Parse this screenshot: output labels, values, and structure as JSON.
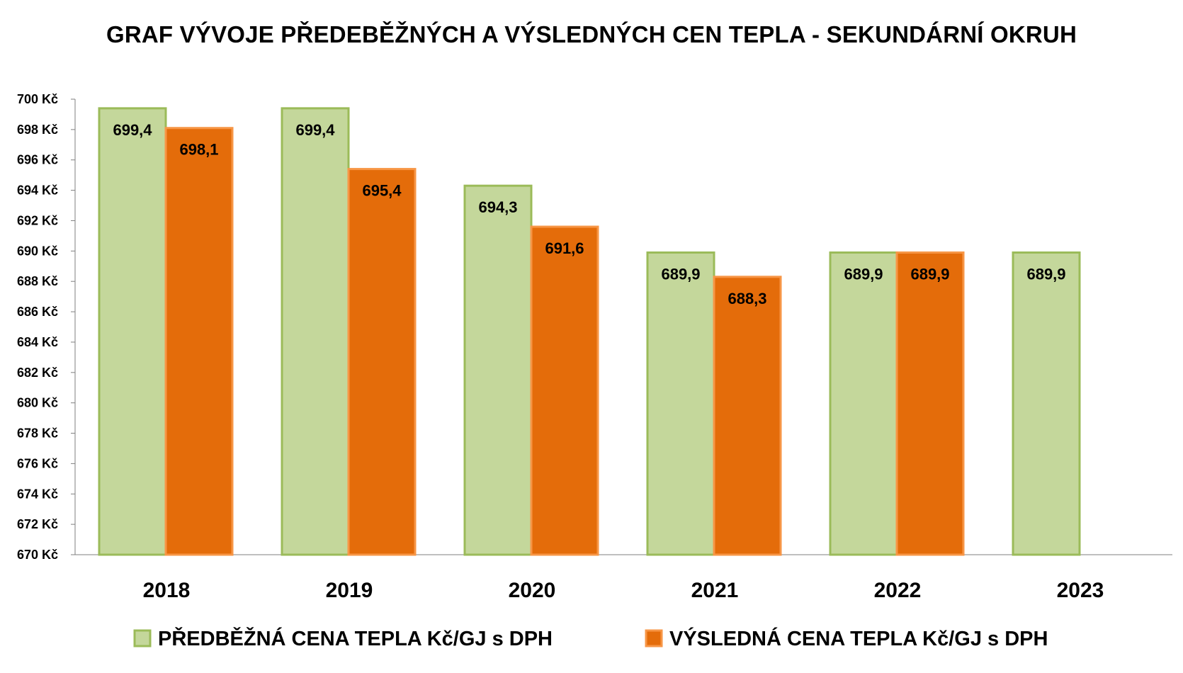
{
  "chart_data": {
    "type": "bar",
    "title": "GRAF VÝVOJE PŘEDEBĚŽNÝCH A VÝSLEDNÝCH CEN TEPLA - SEKUNDÁRNÍ OKRUH",
    "categories": [
      "2018",
      "2019",
      "2020",
      "2021",
      "2022",
      "2023"
    ],
    "series": [
      {
        "name": "PŘEDBĚŽNÁ CENA TEPLA Kč/GJ s DPH",
        "values": [
          699.4,
          699.4,
          694.3,
          689.9,
          689.9,
          689.9
        ],
        "labels": [
          "699,4",
          "699,4",
          "694,3",
          "689,9",
          "689,9",
          "689,9"
        ],
        "fill": "#c4d79b",
        "stroke": "#9bbb59"
      },
      {
        "name": "VÝSLEDNÁ CENA TEPLA Kč/GJ s DPH",
        "values": [
          698.1,
          695.4,
          691.6,
          688.3,
          689.9,
          null
        ],
        "labels": [
          "698,1",
          "695,4",
          "691,6",
          "688,3",
          "689,9",
          ""
        ],
        "fill": "#e46c0a",
        "stroke": "#f79646"
      }
    ],
    "ylim": [
      670,
      700
    ],
    "ytick_step": 2,
    "ytick_suffix": " Kč",
    "grid": false,
    "legend_position": "bottom",
    "xlabel": "",
    "ylabel": ""
  }
}
